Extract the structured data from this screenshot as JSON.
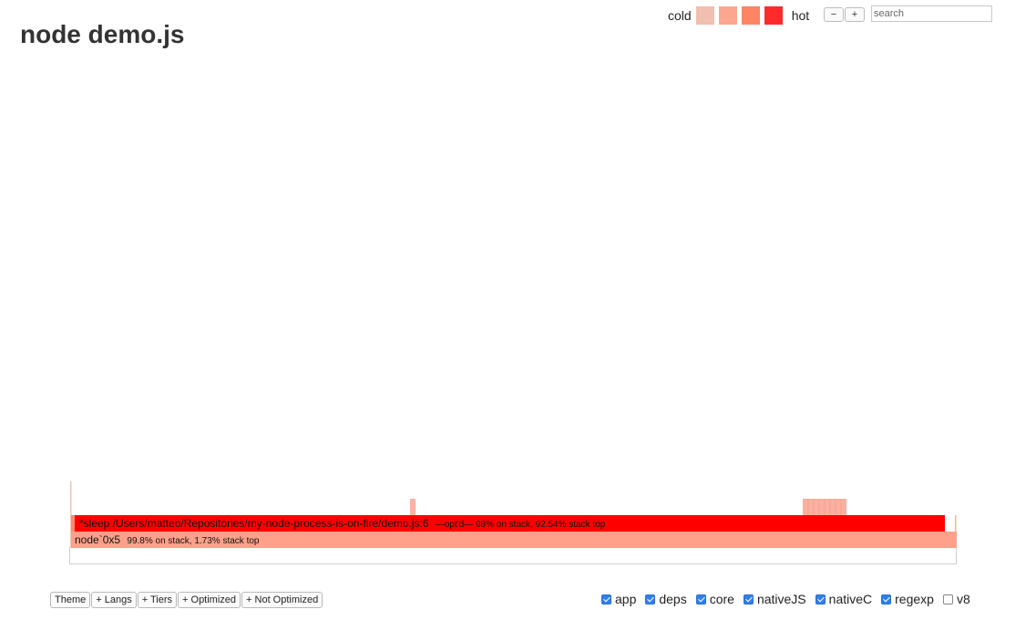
{
  "title": "node demo.js",
  "legend": {
    "cold_label": "cold",
    "hot_label": "hot",
    "swatches": [
      "#f0bfb0",
      "#fca68f",
      "#ff8463",
      "#ff2a2a"
    ]
  },
  "zoom": {
    "minus_label": "−",
    "plus_label": "+"
  },
  "search": {
    "placeholder": "search",
    "value": ""
  },
  "flamegraph": {
    "frames": [
      {
        "name": "node`0x5",
        "details": "99.8% on stack, 1.73% stack top",
        "color": "#ffa08a"
      },
      {
        "name": "*sleep /Users/matteo/Repositories/my-node-process-is-on-fire/demo.js:6",
        "details": "—opt'd—  98% on stack, 92.54% stack top",
        "color": "#ff0000"
      }
    ]
  },
  "controls": {
    "buttons": [
      "Theme",
      "+ Langs",
      "+ Tiers",
      "+ Optimized",
      "+ Not Optimized"
    ]
  },
  "filters": [
    {
      "label": "app",
      "checked": true
    },
    {
      "label": "deps",
      "checked": true
    },
    {
      "label": "core",
      "checked": true
    },
    {
      "label": "nativeJS",
      "checked": true
    },
    {
      "label": "nativeC",
      "checked": true
    },
    {
      "label": "regexp",
      "checked": true
    },
    {
      "label": "v8",
      "checked": false
    }
  ]
}
